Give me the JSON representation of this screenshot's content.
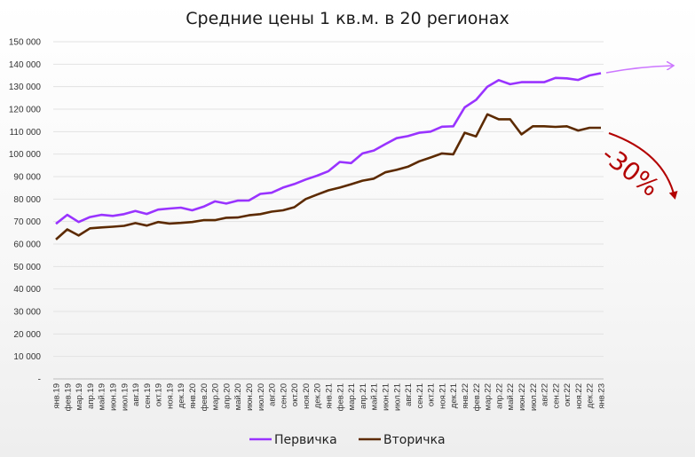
{
  "chart_data": {
    "type": "line",
    "title": "Средние цены 1 кв.м. в 20 регионах",
    "xlabel": "",
    "ylabel": "",
    "ylim": [
      0,
      150000
    ],
    "yticks": [
      "-",
      "10 000",
      "20 000",
      "30 000",
      "40 000",
      "50 000",
      "60 000",
      "70 000",
      "80 000",
      "90 000",
      "100 000",
      "110 000",
      "120 000",
      "130 000",
      "140 000",
      "150 000"
    ],
    "grid": true,
    "legend": "bottom",
    "categories": [
      "янв.19",
      "фев.19",
      "мар.19",
      "апр.19",
      "май.19",
      "июн.19",
      "июл.19",
      "авг.19",
      "сен.19",
      "окт.19",
      "ноя.19",
      "дек.19",
      "янв.20",
      "фев.20",
      "мар.20",
      "апр.20",
      "май.20",
      "июн.20",
      "июл.20",
      "авг.20",
      "сен.20",
      "окт.20",
      "ноя.20",
      "дек.20",
      "янв.21",
      "фев.21",
      "мар.21",
      "апр.21",
      "май.21",
      "июн.21",
      "июл.21",
      "авг.21",
      "сен.21",
      "окт.21",
      "ноя.21",
      "дек.21",
      "янв.22",
      "фев.22",
      "мар.22",
      "апр.22",
      "май.22",
      "июн.22",
      "июл.22",
      "авг.22",
      "сен.22",
      "окт.22",
      "ноя.22",
      "дек.22",
      "янв.23"
    ],
    "series": [
      {
        "name": "Первичка",
        "color": "#9933ff",
        "values": [
          69000,
          73000,
          69800,
          72000,
          73000,
          72500,
          73300,
          74700,
          73400,
          75300,
          75800,
          76200,
          75000,
          76600,
          79000,
          78000,
          79300,
          79400,
          82300,
          82800,
          85100,
          86700,
          88700,
          90400,
          92400,
          96500,
          96000,
          100300,
          101600,
          104400,
          107100,
          108000,
          109500,
          110000,
          112200,
          112400,
          120800,
          124100,
          130000,
          132900,
          131100,
          132000,
          132000,
          132000,
          133900,
          133700,
          133000,
          135000,
          136000
        ]
      },
      {
        "name": "Вторичка",
        "color": "#5c2a00",
        "values": [
          62000,
          66500,
          63800,
          67000,
          67400,
          67700,
          68100,
          69300,
          68200,
          69800,
          69100,
          69400,
          69800,
          70600,
          70600,
          71700,
          71800,
          72800,
          73300,
          74400,
          75000,
          76400,
          80000,
          82000,
          83900,
          85100,
          86600,
          88200,
          89100,
          91900,
          93000,
          94400,
          96800,
          98500,
          100300,
          99900,
          109500,
          107900,
          117700,
          115500,
          115500,
          108800,
          112400,
          112400,
          112100,
          112400,
          110500,
          111700,
          111700
        ]
      }
    ],
    "annotation": {
      "text": "-30%",
      "color": "#b30000",
      "upper_arrow_color": "#cc77ff"
    }
  }
}
